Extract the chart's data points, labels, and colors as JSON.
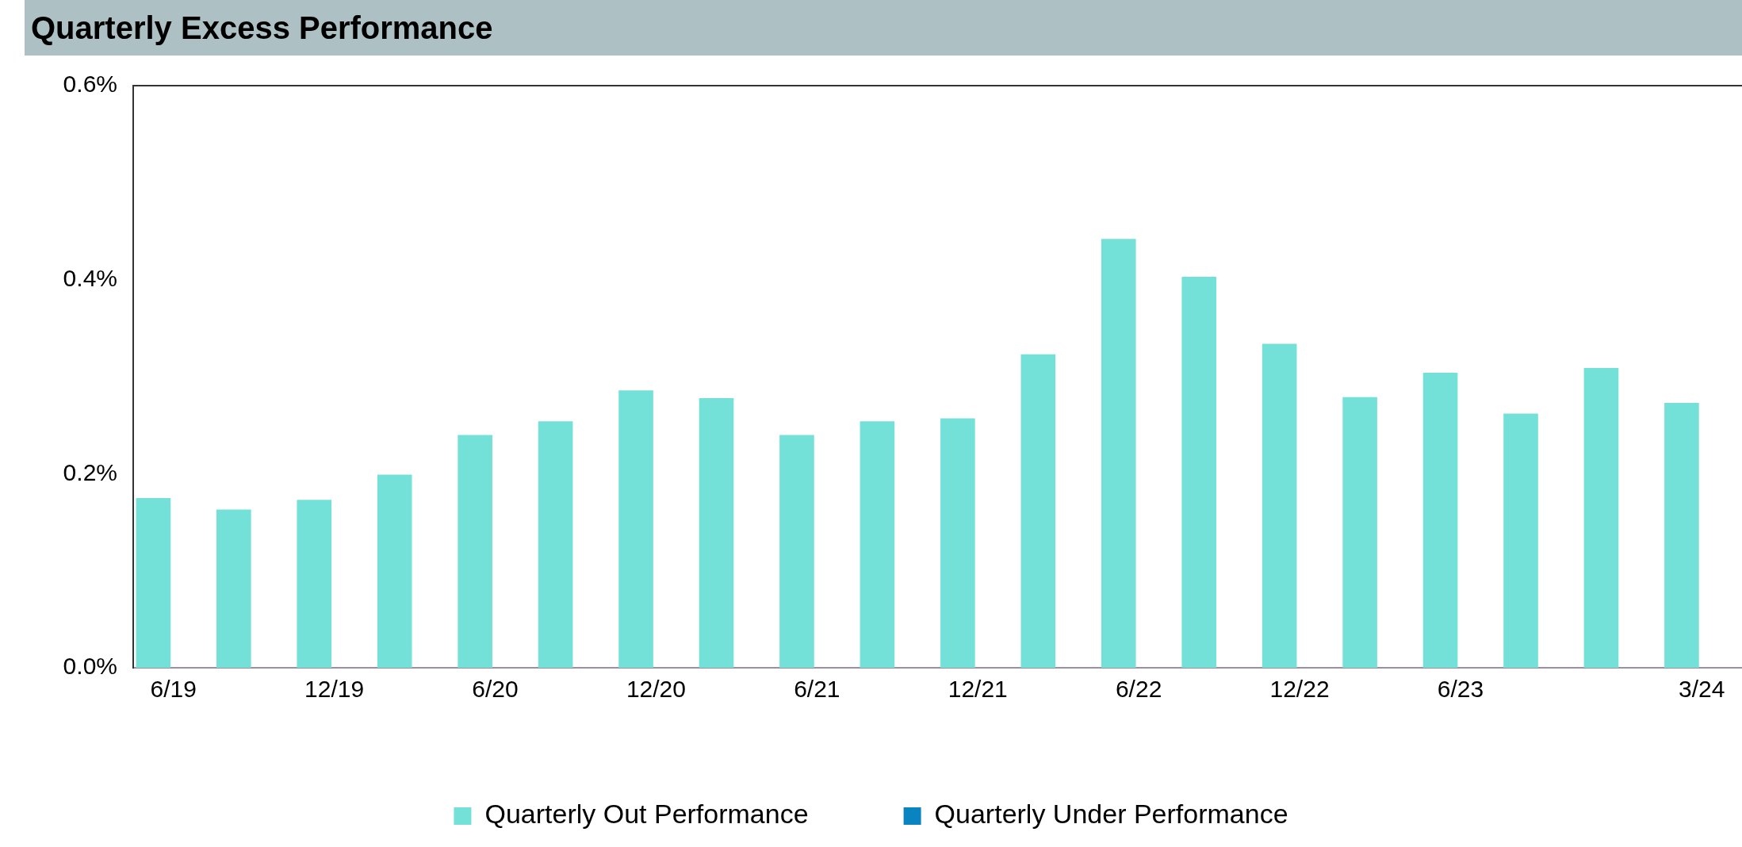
{
  "chart_data": {
    "type": "bar",
    "title": "Quarterly Excess Performance",
    "categories": [
      "6/19",
      null,
      "12/19",
      null,
      "6/20",
      null,
      "12/20",
      null,
      "6/21",
      null,
      "12/21",
      null,
      "6/22",
      null,
      "12/22",
      null,
      "6/23",
      null,
      null,
      "3/24"
    ],
    "series": [
      {
        "name": "Quarterly Out Performance",
        "color": "#74e1d8",
        "values": [
          0.175,
          0.163,
          0.173,
          0.199,
          0.24,
          0.254,
          0.286,
          0.278,
          0.24,
          0.254,
          0.257,
          0.323,
          0.442,
          0.403,
          0.334,
          0.279,
          0.304,
          0.262,
          0.309,
          0.273
        ]
      },
      {
        "name": "Quarterly Under Performance",
        "color": "#0a84c0",
        "values": [
          null,
          null,
          null,
          null,
          null,
          null,
          null,
          null,
          null,
          null,
          null,
          null,
          null,
          null,
          null,
          null,
          null,
          null,
          null,
          null
        ]
      }
    ],
    "ylim": [
      0,
      0.6
    ],
    "yticks": [
      {
        "value": 0,
        "label": "0.0%"
      },
      {
        "value": 0.2,
        "label": "0.2%"
      },
      {
        "value": 0.4,
        "label": "0.4%"
      },
      {
        "value": 0.6,
        "label": "0.6%"
      }
    ],
    "grid": false,
    "legend": "bottom"
  }
}
